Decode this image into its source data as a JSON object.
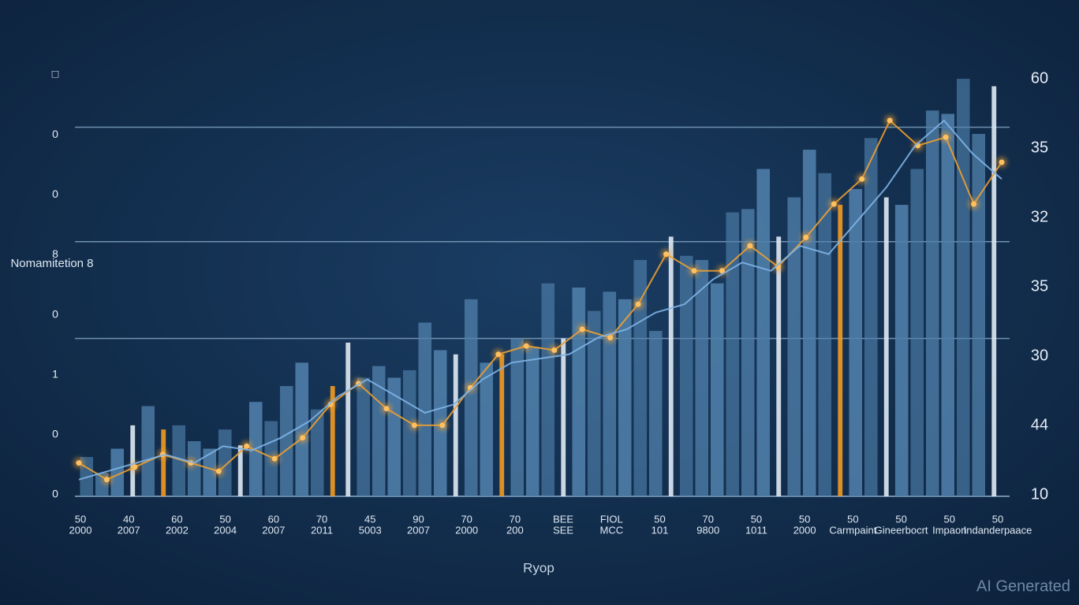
{
  "chart_data": {
    "type": "bar",
    "ylim": [
      10,
      60
    ],
    "right_axis_labels": [
      "60",
      "35",
      "32",
      "35",
      "30",
      "44",
      "10"
    ],
    "left_axis_labels": [
      "□",
      "0",
      "0",
      "8",
      "0",
      "1",
      "0",
      "0"
    ],
    "y_label": "Nomamitetion 8",
    "x_label": "Ryop",
    "watermark": "AI Generated",
    "grid_values": [
      54.2,
      40.5,
      28.9
    ],
    "x_labels": [
      [
        "50",
        "2000"
      ],
      [
        "40",
        "2007"
      ],
      [
        "60",
        "2002"
      ],
      [
        "50",
        "2004"
      ],
      [
        "60",
        "2007"
      ],
      [
        "70",
        "2011"
      ],
      [
        "45",
        "5003"
      ],
      [
        "90",
        "2007"
      ],
      [
        "70",
        "2000"
      ],
      [
        "70",
        "200"
      ],
      [
        "BEE",
        "SEE"
      ],
      [
        "FIOL",
        "MCC"
      ],
      [
        "50",
        "101"
      ],
      [
        "70",
        "9800"
      ],
      [
        "50",
        "1011"
      ],
      [
        "50",
        "2000"
      ],
      [
        "50",
        "Carmpaint"
      ],
      [
        "50",
        "Gineerbocrt"
      ],
      [
        "50",
        "Impaon"
      ],
      [
        "50",
        "Indanderpaace"
      ]
    ],
    "bars": {
      "color": "#4f7faa",
      "values": [
        14.7,
        12.8,
        15.7,
        18.5,
        20.8,
        18,
        18.5,
        16.6,
        15.7,
        18,
        16.1,
        21.3,
        19,
        23.2,
        26,
        20.4,
        23.2,
        28.4,
        24.2,
        25.6,
        24.2,
        25.1,
        30.8,
        27.5,
        27,
        33.6,
        26,
        27,
        28.9,
        27.9,
        35.5,
        28.9,
        35,
        32.2,
        34.5,
        33.6,
        38.3,
        29.8,
        41.1,
        38.8,
        38.3,
        35.5,
        44,
        44.4,
        49.2,
        41.1,
        45.8,
        51.5,
        48.7,
        44.9,
        46.8,
        52.9,
        45.8,
        44.9,
        49.2,
        56.2,
        55.8,
        60,
        53.4,
        59.1
      ]
    },
    "lines": [
      {
        "color": "#f0a030",
        "values": [
          14,
          12,
          13.5,
          15,
          14,
          13,
          16,
          14.5,
          17,
          21,
          23.5,
          20.5,
          18.5,
          18.5,
          23,
          27,
          28,
          27.5,
          30,
          29,
          33,
          39,
          37,
          37,
          40,
          37.5,
          41,
          45,
          48,
          55,
          52,
          53,
          45,
          50
        ]
      },
      {
        "color": "#7fb4e6",
        "values": [
          12,
          13,
          14,
          15,
          14,
          16,
          15.5,
          17,
          19,
          22,
          24,
          22,
          20,
          21,
          24,
          26,
          26.5,
          27,
          29,
          30,
          32,
          33,
          36,
          38,
          37,
          40,
          39,
          43,
          47,
          52,
          55,
          51,
          48
        ]
      }
    ]
  }
}
